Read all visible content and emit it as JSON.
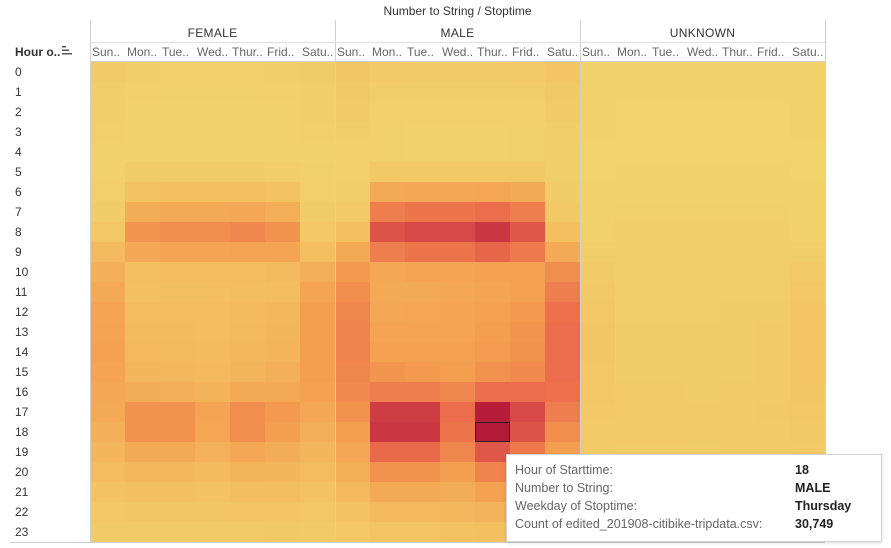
{
  "chart_data": {
    "type": "heatmap",
    "title": "Number to String / Stoptime",
    "row_axis_title": "Hour o..",
    "groups": [
      "FEMALE",
      "MALE",
      "UNKNOWN"
    ],
    "days": [
      "Sun..",
      "Mon..",
      "Tue..",
      "Wed..",
      "Thur..",
      "Frid..",
      "Satu.."
    ],
    "hours": [
      "0",
      "1",
      "2",
      "3",
      "4",
      "5",
      "6",
      "7",
      "8",
      "9",
      "10",
      "11",
      "12",
      "13",
      "14",
      "15",
      "16",
      "17",
      "18",
      "19",
      "20",
      "21",
      "22",
      "23"
    ],
    "value_max": 30749,
    "values": {
      "FEMALE": [
        [
          2200,
          1200,
          1100,
          1100,
          1100,
          1200,
          2000
        ],
        [
          1700,
          900,
          800,
          800,
          800,
          900,
          1700
        ],
        [
          1300,
          600,
          600,
          600,
          600,
          700,
          1300
        ],
        [
          900,
          500,
          500,
          500,
          500,
          500,
          900
        ],
        [
          700,
          500,
          500,
          500,
          500,
          500,
          700
        ],
        [
          700,
          1800,
          1800,
          1800,
          1800,
          1700,
          800
        ],
        [
          1000,
          5000,
          5500,
          5500,
          5300,
          4800,
          1100
        ],
        [
          1800,
          8500,
          9000,
          9000,
          9500,
          8300,
          1900
        ],
        [
          3500,
          12000,
          13000,
          13000,
          14000,
          12500,
          3300
        ],
        [
          6200,
          9500,
          10000,
          10000,
          10200,
          10000,
          5500
        ],
        [
          8000,
          5500,
          5800,
          5900,
          6000,
          6300,
          8300
        ],
        [
          9000,
          5200,
          5300,
          5500,
          5600,
          6000,
          10000
        ],
        [
          10000,
          5800,
          6000,
          6000,
          6100,
          6800,
          11000
        ],
        [
          10200,
          6200,
          6100,
          6000,
          6300,
          7000,
          11000
        ],
        [
          10400,
          6500,
          6300,
          6200,
          6600,
          7300,
          11000
        ],
        [
          10000,
          7000,
          6800,
          6500,
          7200,
          8000,
          11000
        ],
        [
          9500,
          8500,
          8300,
          7600,
          9000,
          9200,
          10500
        ],
        [
          9000,
          12500,
          12500,
          10000,
          13000,
          11500,
          9500
        ],
        [
          8000,
          12500,
          12500,
          9800,
          13000,
          11000,
          8400
        ],
        [
          7000,
          9000,
          9000,
          7800,
          9500,
          8500,
          7000
        ],
        [
          6000,
          6800,
          6800,
          6200,
          7200,
          7000,
          6000
        ],
        [
          4800,
          5200,
          5200,
          4900,
          5600,
          5600,
          4800
        ],
        [
          3500,
          3800,
          3800,
          3800,
          4200,
          4300,
          3600
        ],
        [
          2300,
          2400,
          2400,
          2500,
          2800,
          3000,
          2600
        ]
      ],
      "MALE": [
        [
          3800,
          2500,
          2300,
          2300,
          2300,
          2500,
          3900
        ],
        [
          2900,
          1700,
          1500,
          1500,
          1500,
          1600,
          3100
        ],
        [
          2200,
          1100,
          1000,
          1000,
          1000,
          1100,
          2300
        ],
        [
          1500,
          800,
          700,
          700,
          700,
          800,
          1600
        ],
        [
          1100,
          800,
          700,
          700,
          700,
          800,
          1200
        ],
        [
          1100,
          3000,
          3100,
          3100,
          3100,
          2900,
          1300
        ],
        [
          1600,
          9000,
          9500,
          9500,
          9800,
          8800,
          1800
        ],
        [
          2800,
          15000,
          16000,
          16000,
          17000,
          15000,
          3100
        ],
        [
          5500,
          20500,
          22000,
          22000,
          25000,
          20000,
          5500
        ],
        [
          9000,
          15000,
          16000,
          16000,
          18000,
          15500,
          9000
        ],
        [
          11500,
          9500,
          10000,
          10000,
          10500,
          10500,
          13000
        ],
        [
          13000,
          9000,
          9300,
          9500,
          10000,
          10500,
          15000
        ],
        [
          14000,
          9500,
          9800,
          10000,
          10500,
          11500,
          16500
        ],
        [
          14300,
          10000,
          10000,
          10000,
          11000,
          12000,
          17000
        ],
        [
          14500,
          10500,
          10500,
          10400,
          11300,
          12500,
          17000
        ],
        [
          14000,
          12000,
          11500,
          11000,
          12500,
          13500,
          17000
        ],
        [
          13500,
          15000,
          15000,
          14000,
          17000,
          17000,
          16500
        ],
        [
          12500,
          24000,
          24000,
          17000,
          30000,
          22000,
          15000
        ],
        [
          11000,
          25000,
          25000,
          16000,
          30749,
          20500,
          13000
        ],
        [
          9500,
          17500,
          17500,
          14000,
          20000,
          15500,
          11000
        ],
        [
          8200,
          12500,
          12500,
          11000,
          14500,
          12000,
          9500
        ],
        [
          6500,
          9000,
          9000,
          8500,
          10500,
          9500,
          7500
        ],
        [
          4900,
          6500,
          6500,
          6600,
          7500,
          7500,
          5800
        ],
        [
          3300,
          4500,
          4500,
          4700,
          5200,
          5500,
          4300
        ]
      ],
      "UNKNOWN": [
        [
          500,
          300,
          300,
          300,
          300,
          300,
          500
        ],
        [
          400,
          200,
          200,
          200,
          200,
          200,
          400
        ],
        [
          300,
          150,
          150,
          150,
          150,
          150,
          300
        ],
        [
          200,
          100,
          100,
          100,
          100,
          100,
          200
        ],
        [
          150,
          100,
          100,
          100,
          100,
          100,
          150
        ],
        [
          150,
          200,
          200,
          200,
          200,
          200,
          150
        ],
        [
          200,
          500,
          500,
          500,
          500,
          500,
          200
        ],
        [
          300,
          800,
          800,
          800,
          800,
          800,
          300
        ],
        [
          600,
          1300,
          1300,
          1300,
          1300,
          1300,
          600
        ],
        [
          1200,
          1300,
          1300,
          1300,
          1300,
          1300,
          1200
        ],
        [
          2200,
          1200,
          1300,
          1300,
          1300,
          1400,
          2800
        ],
        [
          3000,
          1300,
          1400,
          1400,
          1500,
          1700,
          3600
        ],
        [
          3600,
          1700,
          1700,
          1700,
          1800,
          2100,
          4100
        ],
        [
          3800,
          1800,
          1800,
          1800,
          1900,
          2300,
          4200
        ],
        [
          3800,
          1900,
          1900,
          1900,
          2000,
          2400,
          4100
        ],
        [
          3700,
          2000,
          2000,
          2000,
          2100,
          2500,
          4000
        ],
        [
          3500,
          2200,
          2200,
          2100,
          2300,
          2700,
          3800
        ],
        [
          3200,
          2600,
          2600,
          2300,
          2700,
          2900,
          3500
        ],
        [
          2800,
          2600,
          2600,
          2300,
          2700,
          2800,
          3000
        ],
        [
          2400,
          2100,
          2100,
          1900,
          2200,
          2300,
          2600
        ],
        [
          2000,
          1700,
          1700,
          1600,
          1800,
          1900,
          2100
        ],
        [
          1500,
          1300,
          1300,
          1300,
          1400,
          1500,
          1700
        ],
        [
          1100,
          1000,
          1000,
          1000,
          1100,
          1200,
          1400
        ],
        [
          800,
          700,
          700,
          700,
          800,
          900,
          1000
        ]
      ]
    },
    "highlight": {
      "group": "MALE",
      "day_index": 4,
      "hour_index": 18
    }
  },
  "tooltip": {
    "rows": [
      {
        "label": "Hour of Starttime:",
        "value": "18"
      },
      {
        "label": "Number to String:",
        "value": "MALE"
      },
      {
        "label": "Weekday of Stoptime:",
        "value": "Thursday"
      },
      {
        "label": "Count of edited_201908-citibike-tripdata.csv:",
        "value": "30,749"
      }
    ]
  }
}
